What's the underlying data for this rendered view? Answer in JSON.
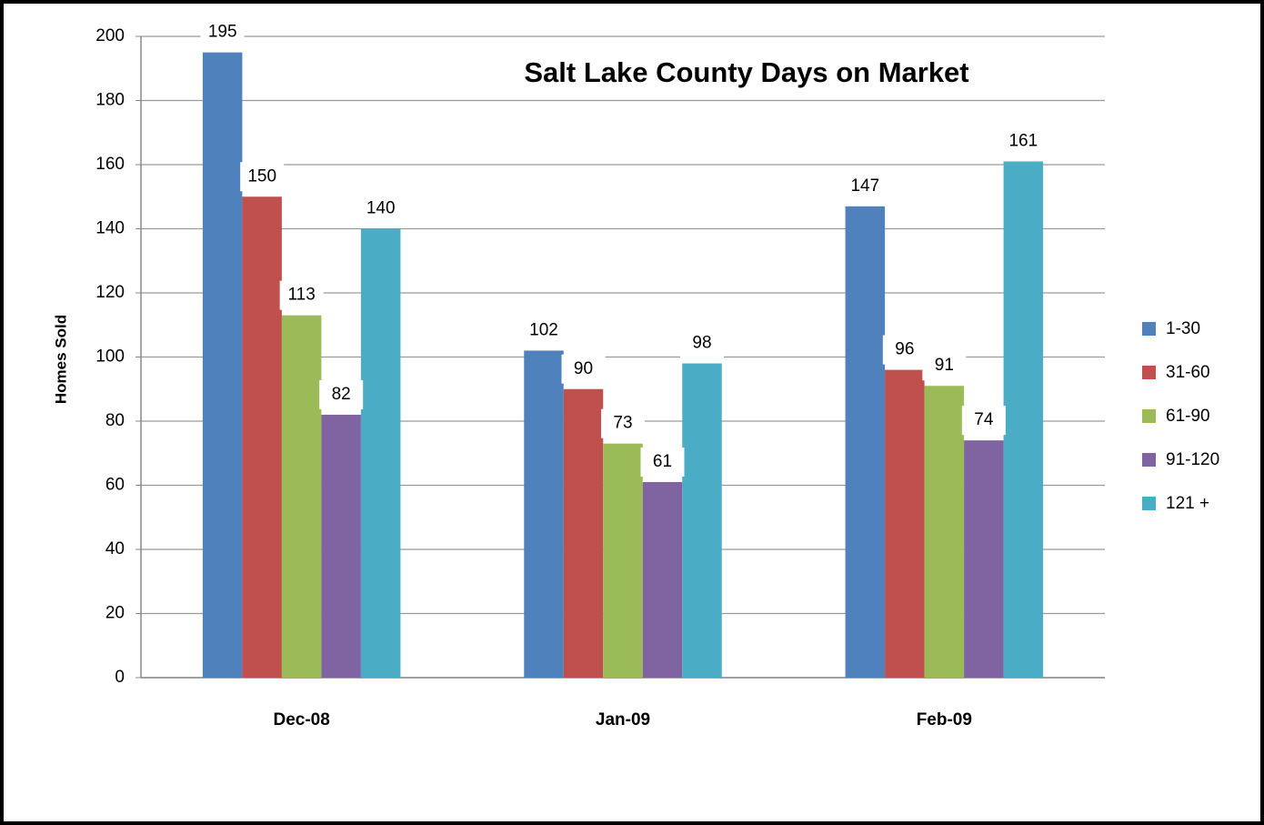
{
  "chart_data": {
    "type": "bar",
    "title": "Salt Lake County Days on Market",
    "y_label": "Homes Sold",
    "categories": [
      "Dec-08",
      "Jan-09",
      "Feb-09"
    ],
    "series": [
      {
        "name": "1-30",
        "color": "#4f81bd",
        "values": [
          195,
          102,
          147
        ]
      },
      {
        "name": "31-60",
        "color": "#c0504d",
        "values": [
          150,
          90,
          96
        ]
      },
      {
        "name": "61-90",
        "color": "#9bbb59",
        "values": [
          113,
          73,
          91
        ]
      },
      {
        "name": "91-120",
        "color": "#8064a2",
        "values": [
          82,
          61,
          74
        ]
      },
      {
        "name": "121 +",
        "color": "#4bacc6",
        "values": [
          140,
          98,
          161
        ]
      }
    ],
    "ylim": [
      0,
      200
    ],
    "yticks": [
      0,
      20,
      40,
      60,
      80,
      100,
      120,
      140,
      160,
      180,
      200
    ],
    "grid": true,
    "legend": "right"
  }
}
